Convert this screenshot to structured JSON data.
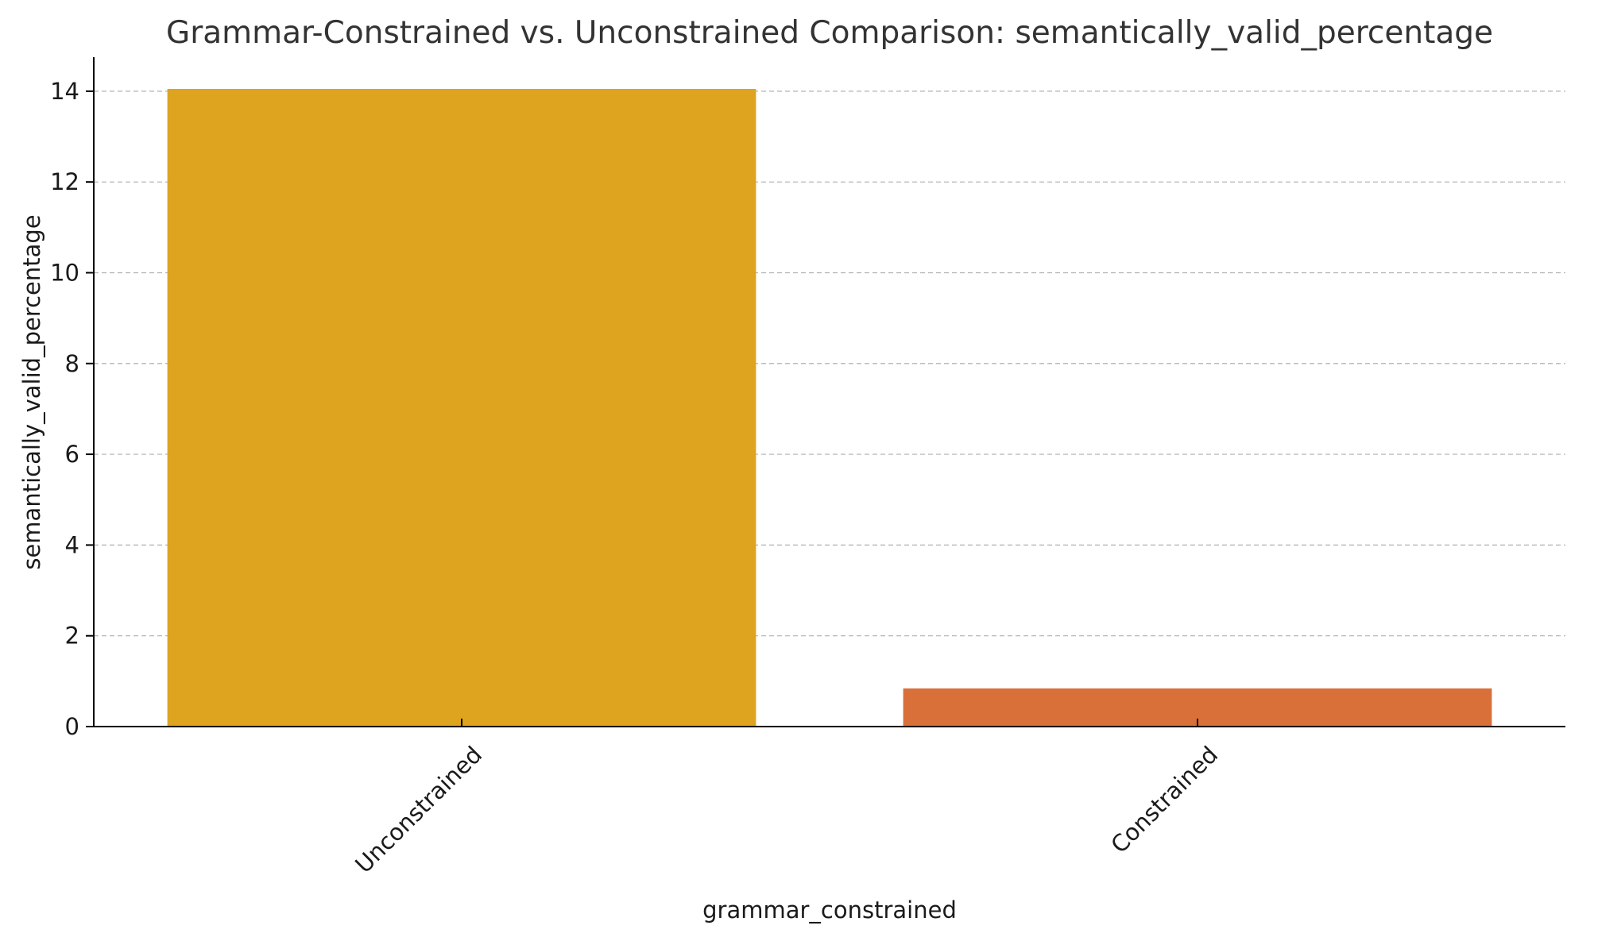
{
  "chart_data": {
    "type": "bar",
    "title": "Grammar-Constrained vs. Unconstrained Comparison: semantically_valid_percentage",
    "xlabel": "grammar_constrained",
    "ylabel": "semantically_valid_percentage",
    "categories": [
      "Unconstrained",
      "Constrained"
    ],
    "values": [
      14.05,
      0.84
    ],
    "colors": [
      "#DEA420",
      "#D9703A"
    ],
    "ylim": [
      0,
      14.75
    ],
    "yticks": [
      0,
      2,
      4,
      6,
      8,
      10,
      12,
      14
    ],
    "grid": "horizontal-dashed",
    "legend": "none"
  }
}
